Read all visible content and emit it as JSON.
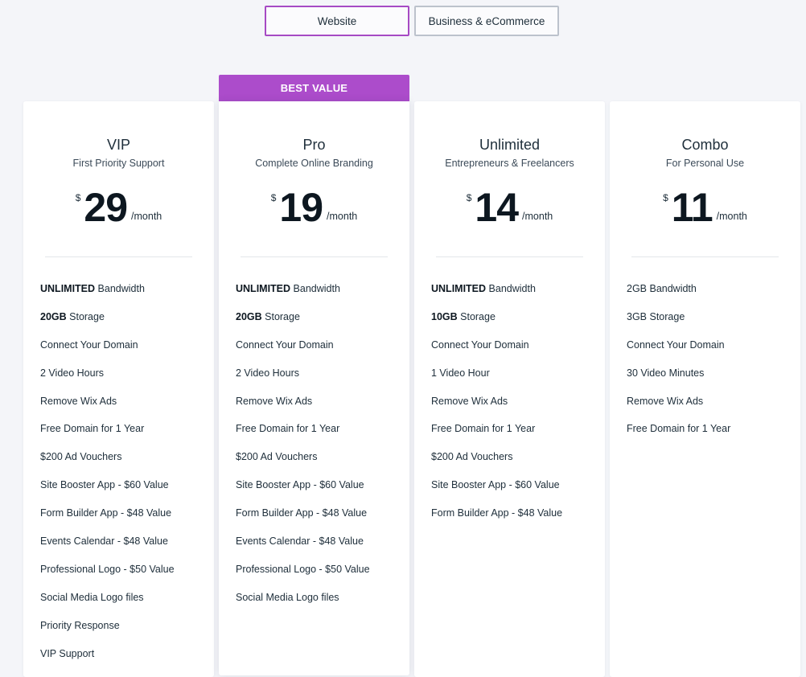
{
  "tabs": [
    {
      "label": "Website",
      "selected": true
    },
    {
      "label": "Business & eCommerce",
      "selected": false
    }
  ],
  "colors": {
    "accent": "#ac4ccb",
    "tab_border_active": "#a64ac4",
    "text": "#20303c"
  },
  "best_value_badge": "BEST VALUE",
  "plans": [
    {
      "name": "VIP",
      "subtitle": "First Priority Support",
      "currency": "$",
      "price": "29",
      "period": "/month",
      "features": [
        {
          "bold": "UNLIMITED",
          "text": " Bandwidth"
        },
        {
          "bold": "20GB",
          "text": " Storage"
        },
        {
          "bold": "",
          "text": "Connect Your Domain"
        },
        {
          "bold": "",
          "text": "2 Video Hours"
        },
        {
          "bold": "",
          "text": "Remove Wix Ads"
        },
        {
          "bold": "",
          "text": "Free Domain for 1 Year"
        },
        {
          "bold": "",
          "text": "$200 Ad Vouchers"
        },
        {
          "bold": "",
          "text": "Site Booster App - $60 Value"
        },
        {
          "bold": "",
          "text": "Form Builder App - $48 Value"
        },
        {
          "bold": "",
          "text": "Events Calendar - $48 Value"
        },
        {
          "bold": "",
          "text": "Professional Logo - $50 Value"
        },
        {
          "bold": "",
          "text": "Social Media Logo files"
        },
        {
          "bold": "",
          "text": "Priority Response"
        },
        {
          "bold": "",
          "text": "VIP Support"
        }
      ]
    },
    {
      "name": "Pro",
      "subtitle": "Complete Online Branding",
      "currency": "$",
      "price": "19",
      "period": "/month",
      "features": [
        {
          "bold": "UNLIMITED",
          "text": " Bandwidth"
        },
        {
          "bold": "20GB",
          "text": " Storage"
        },
        {
          "bold": "",
          "text": "Connect Your Domain"
        },
        {
          "bold": "",
          "text": "2 Video Hours"
        },
        {
          "bold": "",
          "text": "Remove Wix Ads"
        },
        {
          "bold": "",
          "text": "Free Domain for 1 Year"
        },
        {
          "bold": "",
          "text": "$200 Ad Vouchers"
        },
        {
          "bold": "",
          "text": "Site Booster App - $60 Value"
        },
        {
          "bold": "",
          "text": "Form Builder App - $48 Value"
        },
        {
          "bold": "",
          "text": "Events Calendar - $48 Value"
        },
        {
          "bold": "",
          "text": "Professional Logo - $50 Value"
        },
        {
          "bold": "",
          "text": "Social Media Logo files"
        }
      ]
    },
    {
      "name": "Unlimited",
      "subtitle": "Entrepreneurs & Freelancers",
      "currency": "$",
      "price": "14",
      "period": "/month",
      "features": [
        {
          "bold": "UNLIMITED",
          "text": " Bandwidth"
        },
        {
          "bold": "10GB",
          "text": " Storage"
        },
        {
          "bold": "",
          "text": "Connect Your Domain"
        },
        {
          "bold": "",
          "text": "1 Video Hour"
        },
        {
          "bold": "",
          "text": "Remove Wix Ads"
        },
        {
          "bold": "",
          "text": "Free Domain for 1 Year"
        },
        {
          "bold": "",
          "text": "$200 Ad Vouchers"
        },
        {
          "bold": "",
          "text": "Site Booster App - $60 Value"
        },
        {
          "bold": "",
          "text": "Form Builder App - $48 Value"
        }
      ]
    },
    {
      "name": "Combo",
      "subtitle": "For Personal Use",
      "currency": "$",
      "price": "11",
      "period": "/month",
      "features": [
        {
          "bold": "",
          "text": "2GB Bandwidth"
        },
        {
          "bold": "",
          "text": "3GB Storage"
        },
        {
          "bold": "",
          "text": "Connect Your Domain"
        },
        {
          "bold": "",
          "text": "30 Video Minutes"
        },
        {
          "bold": "",
          "text": "Remove Wix Ads"
        },
        {
          "bold": "",
          "text": "Free Domain for 1 Year"
        }
      ]
    }
  ]
}
